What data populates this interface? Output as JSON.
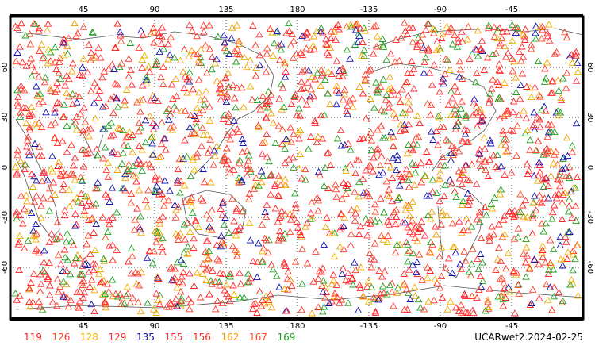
{
  "map": {
    "lon_ticks": [
      "45",
      "90",
      "135",
      "180",
      "-135",
      "-90",
      "-45"
    ],
    "lat_ticks_left": [
      "60",
      "30",
      "0",
      "-30",
      "-60"
    ],
    "lat_ticks_right": [
      "60",
      "30",
      "0",
      "-30",
      "-60"
    ],
    "series_colors": [
      "#ff2020",
      "#ff3b2a",
      "#f0b000",
      "#ff2a2a",
      "#1010b0",
      "#ff3040",
      "#ff2a20",
      "#f0a000",
      "#ff4a2a",
      "#20a020"
    ],
    "station_color_mix": [
      "#ff2020",
      "#ff3b2a",
      "#ff2a2a",
      "#ff3040",
      "#ff2a20",
      "#ff4a2a",
      "#ff2020",
      "#ff3b2a",
      "#20a020",
      "#20a020",
      "#f0b000",
      "#f0a000",
      "#1010b0"
    ]
  },
  "legend": {
    "items": [
      {
        "label": "119",
        "color": "#ff2020"
      },
      {
        "label": "126",
        "color": "#ff3b2a"
      },
      {
        "label": "128",
        "color": "#f0b000"
      },
      {
        "label": "129",
        "color": "#ff2a2a"
      },
      {
        "label": "135",
        "color": "#1010b0"
      },
      {
        "label": "155",
        "color": "#ff3040"
      },
      {
        "label": "156",
        "color": "#ff2a20"
      },
      {
        "label": "162",
        "color": "#f0a000"
      },
      {
        "label": "167",
        "color": "#ff4a2a"
      },
      {
        "label": "169",
        "color": "#20a020"
      }
    ]
  },
  "caption": "UCARwet2.2024-02-25"
}
